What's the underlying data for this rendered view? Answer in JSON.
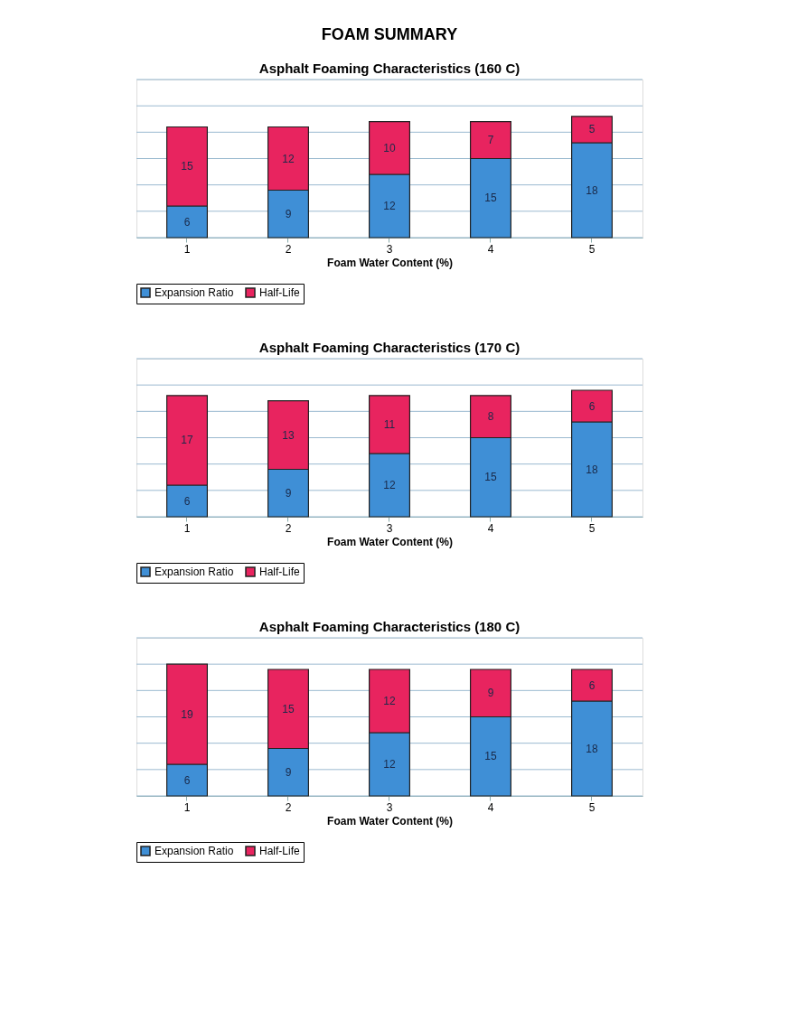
{
  "chart_data": [
    {
      "type": "bar",
      "title": "Asphalt Foaming Characteristics (160 C)",
      "annotations": [
        "FOAM SUMMARY"
      ],
      "xlabel": "Foam Water Content (%)",
      "categories": [
        "1",
        "2",
        "3",
        "4",
        "5"
      ],
      "stacked": true,
      "data_labels": true,
      "grid": "y",
      "legend": "bottom",
      "tick_labels": "x",
      "ylim": [
        0,
        30
      ],
      "yticks": [
        {
          "value": 0,
          "label": null
        },
        {
          "value": 5,
          "label": null
        },
        {
          "value": 10,
          "label": null
        },
        {
          "value": 15,
          "label": null
        },
        {
          "value": 20,
          "label": null
        },
        {
          "value": 25,
          "label": null
        },
        {
          "value": 30,
          "label": null
        }
      ],
      "series": [
        {
          "name": "Expansion Ratio",
          "color": "#3f8fd6",
          "values": [
            6,
            9,
            12,
            15,
            18
          ]
        },
        {
          "name": "Half-Life",
          "color": "#e8245f",
          "values": [
            15,
            12,
            10,
            7,
            5
          ]
        }
      ]
    },
    {
      "type": "bar",
      "title": "Asphalt Foaming Characteristics (170 C)",
      "xlabel": "Foam Water Content (%)",
      "categories": [
        "1",
        "2",
        "3",
        "4",
        "5"
      ],
      "stacked": true,
      "data_labels": true,
      "grid": "y",
      "legend": "bottom",
      "tick_labels": "x",
      "ylim": [
        0,
        30
      ],
      "yticks": [
        {
          "value": 0,
          "label": null
        },
        {
          "value": 5,
          "label": null
        },
        {
          "value": 10,
          "label": null
        },
        {
          "value": 15,
          "label": null
        },
        {
          "value": 20,
          "label": null
        },
        {
          "value": 25,
          "label": null
        },
        {
          "value": 30,
          "label": null
        }
      ],
      "series": [
        {
          "name": "Expansion Ratio",
          "color": "#3f8fd6",
          "values": [
            6,
            9,
            12,
            15,
            18
          ]
        },
        {
          "name": "Half-Life",
          "color": "#e8245f",
          "values": [
            17,
            13,
            11,
            8,
            6
          ]
        }
      ]
    },
    {
      "type": "bar",
      "title": "Asphalt Foaming Characteristics (180 C)",
      "xlabel": "Foam Water Content (%)",
      "categories": [
        "1",
        "2",
        "3",
        "4",
        "5"
      ],
      "stacked": true,
      "data_labels": true,
      "grid": "y",
      "legend": "bottom",
      "tick_labels": "x",
      "ylim": [
        0,
        30
      ],
      "yticks": [
        {
          "value": 0,
          "label": null
        },
        {
          "value": 5,
          "label": null
        },
        {
          "value": 10,
          "label": null
        },
        {
          "value": 15,
          "label": null
        },
        {
          "value": 20,
          "label": null
        },
        {
          "value": 25,
          "label": null
        },
        {
          "value": 30,
          "label": null
        }
      ],
      "series": [
        {
          "name": "Expansion Ratio",
          "color": "#3f8fd6",
          "values": [
            6,
            9,
            12,
            15,
            18
          ]
        },
        {
          "name": "Half-Life",
          "color": "#e8245f",
          "values": [
            19,
            15,
            12,
            9,
            6
          ]
        }
      ]
    }
  ]
}
